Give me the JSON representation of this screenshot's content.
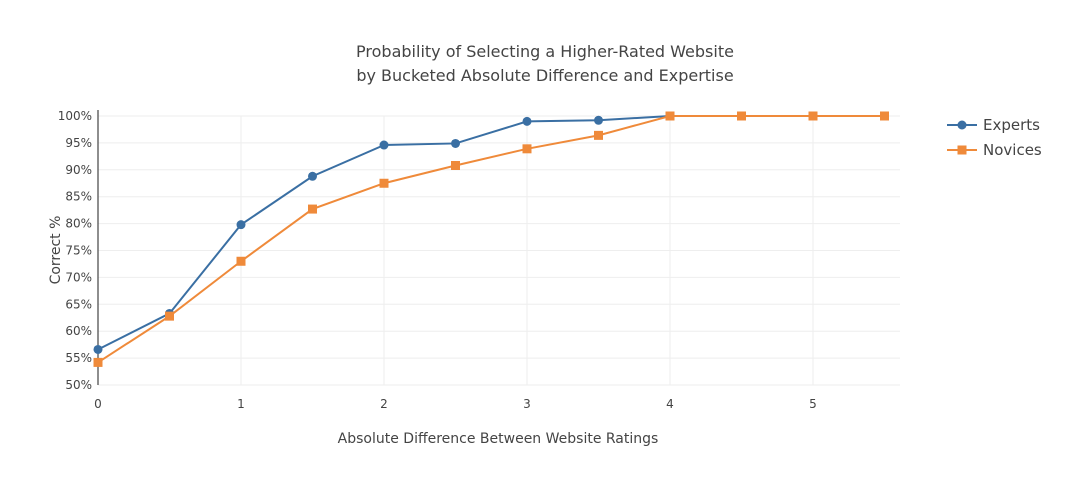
{
  "chart_data": {
    "type": "line",
    "title": [
      "Probability of Selecting a Higher-Rated Website",
      "by Bucketed Absolute Difference and Expertise"
    ],
    "xlabel": "Absolute Difference Between Website Ratings",
    "ylabel": "Correct %",
    "x": [
      0,
      0.5,
      1,
      1.5,
      2,
      2.5,
      3,
      3.5,
      4,
      4.5,
      5,
      5.5
    ],
    "xticks": [
      "0",
      "1",
      "2",
      "3",
      "4",
      "5"
    ],
    "yticks": [
      "50%",
      "55%",
      "60%",
      "65%",
      "70%",
      "75%",
      "80%",
      "85%",
      "90%",
      "95%",
      "100%"
    ],
    "xlim": [
      0,
      5.6
    ],
    "ylim": [
      50,
      100
    ],
    "grid": true,
    "legend_position": "top-right",
    "series": [
      {
        "name": "Experts",
        "color": "#3a6fa3",
        "marker": "circle",
        "values": [
          56.6,
          63.3,
          79.8,
          88.8,
          94.6,
          94.9,
          99.0,
          99.2,
          100,
          100,
          100,
          100
        ]
      },
      {
        "name": "Novices",
        "color": "#ef8a3a",
        "marker": "square",
        "values": [
          54.2,
          62.8,
          73.0,
          82.7,
          87.5,
          90.8,
          93.9,
          96.4,
          100,
          100,
          100,
          100
        ]
      }
    ]
  }
}
